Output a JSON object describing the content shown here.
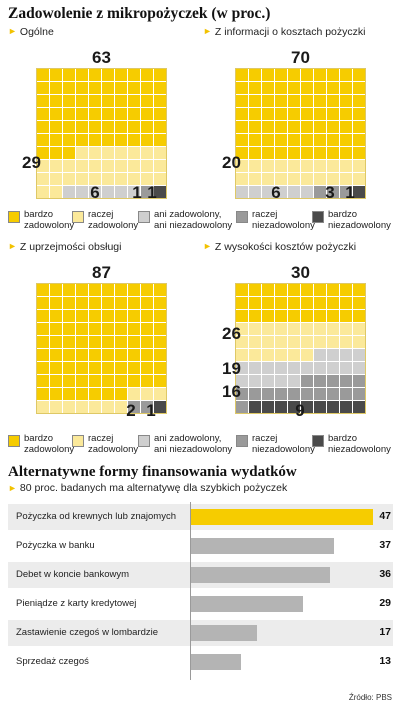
{
  "title": "Zadowolenie z mikropożyczek (w proc.)",
  "categories": [
    "bardzo zadowolony",
    "raczej zadowolony",
    "ani zadowolony, ani niezadowolony",
    "raczej niezadowolony",
    "bardzo niezadowolony"
  ],
  "legend_labels": [
    "bardzo\nzadowolony",
    "raczej\nzadowolony",
    "ani zadowolony,\nani niezadowolony",
    "raczej\nniezadowolony",
    "bardzo\nniezadowolony"
  ],
  "colors": [
    "#f6cc00",
    "#fbe99a",
    "#cfcfcf",
    "#9a9a9a",
    "#4a4a4a"
  ],
  "panels": [
    {
      "title": "Ogólne",
      "values": [
        63,
        29,
        6,
        1,
        1
      ],
      "value_labels": [
        "63",
        "29",
        "6",
        "1",
        "1"
      ]
    },
    {
      "title": "Z informacji o kosztach pożyczki",
      "values": [
        70,
        20,
        6,
        3,
        1
      ],
      "value_labels": [
        "70",
        "20",
        "6",
        "3",
        "1"
      ]
    },
    {
      "title": "Z uprzejmości obsługi",
      "values": [
        87,
        10,
        0,
        2,
        1
      ],
      "value_labels": [
        "87",
        "10",
        "",
        "2",
        "1"
      ]
    },
    {
      "title": "Z wysokości kosztów pożyczki",
      "values": [
        30,
        26,
        19,
        16,
        9
      ],
      "value_labels": [
        "30",
        "26",
        "19",
        "16",
        "9"
      ]
    }
  ],
  "section2": {
    "title": "Alternatywne formy finansowania wydatków",
    "subtitle": "80 proc. badanych ma alternatywę dla szybkich pożyczek"
  },
  "chart_data": [
    {
      "type": "waffle",
      "title": "Ogólne",
      "categories": [
        "bardzo zadowolony",
        "raczej zadowolony",
        "ani zadowolony, ani niezadowolony",
        "raczej niezadowolony",
        "bardzo niezadowolony"
      ],
      "values": [
        63,
        29,
        6,
        1,
        1
      ]
    },
    {
      "type": "waffle",
      "title": "Z informacji o kosztach pożyczki",
      "categories": [
        "bardzo zadowolony",
        "raczej zadowolony",
        "ani zadowolony, ani niezadowolony",
        "raczej niezadowolony",
        "bardzo niezadowolony"
      ],
      "values": [
        70,
        20,
        6,
        3,
        1
      ]
    },
    {
      "type": "waffle",
      "title": "Z uprzejmości obsługi",
      "categories": [
        "bardzo zadowolony",
        "raczej zadowolony",
        "ani zadowolony, ani niezadowolony",
        "raczej niezadowolony",
        "bardzo niezadowolony"
      ],
      "values": [
        87,
        10,
        0,
        2,
        1
      ]
    },
    {
      "type": "waffle",
      "title": "Z wysokości kosztów pożyczki",
      "categories": [
        "bardzo zadowolony",
        "raczej zadowolony",
        "ani zadowolony, ani niezadowolony",
        "raczej niezadowolony",
        "bardzo niezadowolony"
      ],
      "values": [
        30,
        26,
        19,
        16,
        9
      ]
    },
    {
      "type": "bar",
      "title": "Alternatywne formy finansowania wydatków",
      "categories": [
        "Pożyczka od krewnych lub znajomych",
        "Pożyczka w banku",
        "Debet w koncie bankowym",
        "Pieniądze z karty kredytowej",
        "Zastawienie czegoś w lombardzie",
        "Sprzedaż czegoś"
      ],
      "values": [
        47,
        37,
        36,
        29,
        17,
        13
      ],
      "value_labels": [
        "47",
        "37",
        "36",
        "29",
        "17",
        "13"
      ],
      "xlim": [
        0,
        47
      ],
      "highlight_color": "#f6cc00",
      "bar_color": "#b4b4b4"
    }
  ],
  "source": "Źródło: PBS"
}
